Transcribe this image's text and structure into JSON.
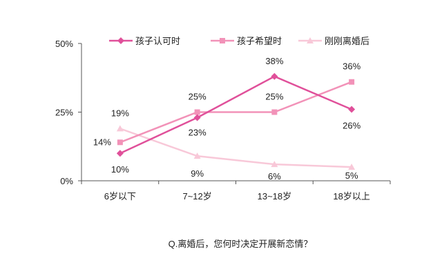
{
  "question": "Q.离婚后，您何时决定开展新恋情？",
  "colors": {
    "axis": "#555555",
    "text": "#222222",
    "series": [
      "#e0509a",
      "#f292b8",
      "#f8c8d8"
    ]
  },
  "chart_data": {
    "type": "line",
    "categories": [
      "6岁以下",
      "7~12岁",
      "13~18岁",
      "18岁以上"
    ],
    "y_ticks": [
      "0%",
      "25%",
      "50%"
    ],
    "ylim": [
      0,
      50
    ],
    "legend_position": "top",
    "grid": false,
    "series": [
      {
        "name": "孩子认可时",
        "values": [
          10,
          23,
          38,
          26
        ],
        "labels": [
          "10%",
          "23%",
          "38%",
          "26%"
        ],
        "marker": "diamond"
      },
      {
        "name": "孩子希望时",
        "values": [
          14,
          25,
          25,
          36
        ],
        "labels": [
          "14%",
          "25%",
          "25%",
          "36%"
        ],
        "marker": "square"
      },
      {
        "name": "刚刚离婚后",
        "values": [
          19,
          9,
          6,
          5
        ],
        "labels": [
          "19%",
          "9%",
          "6%",
          "5%"
        ],
        "marker": "triangle"
      }
    ]
  }
}
